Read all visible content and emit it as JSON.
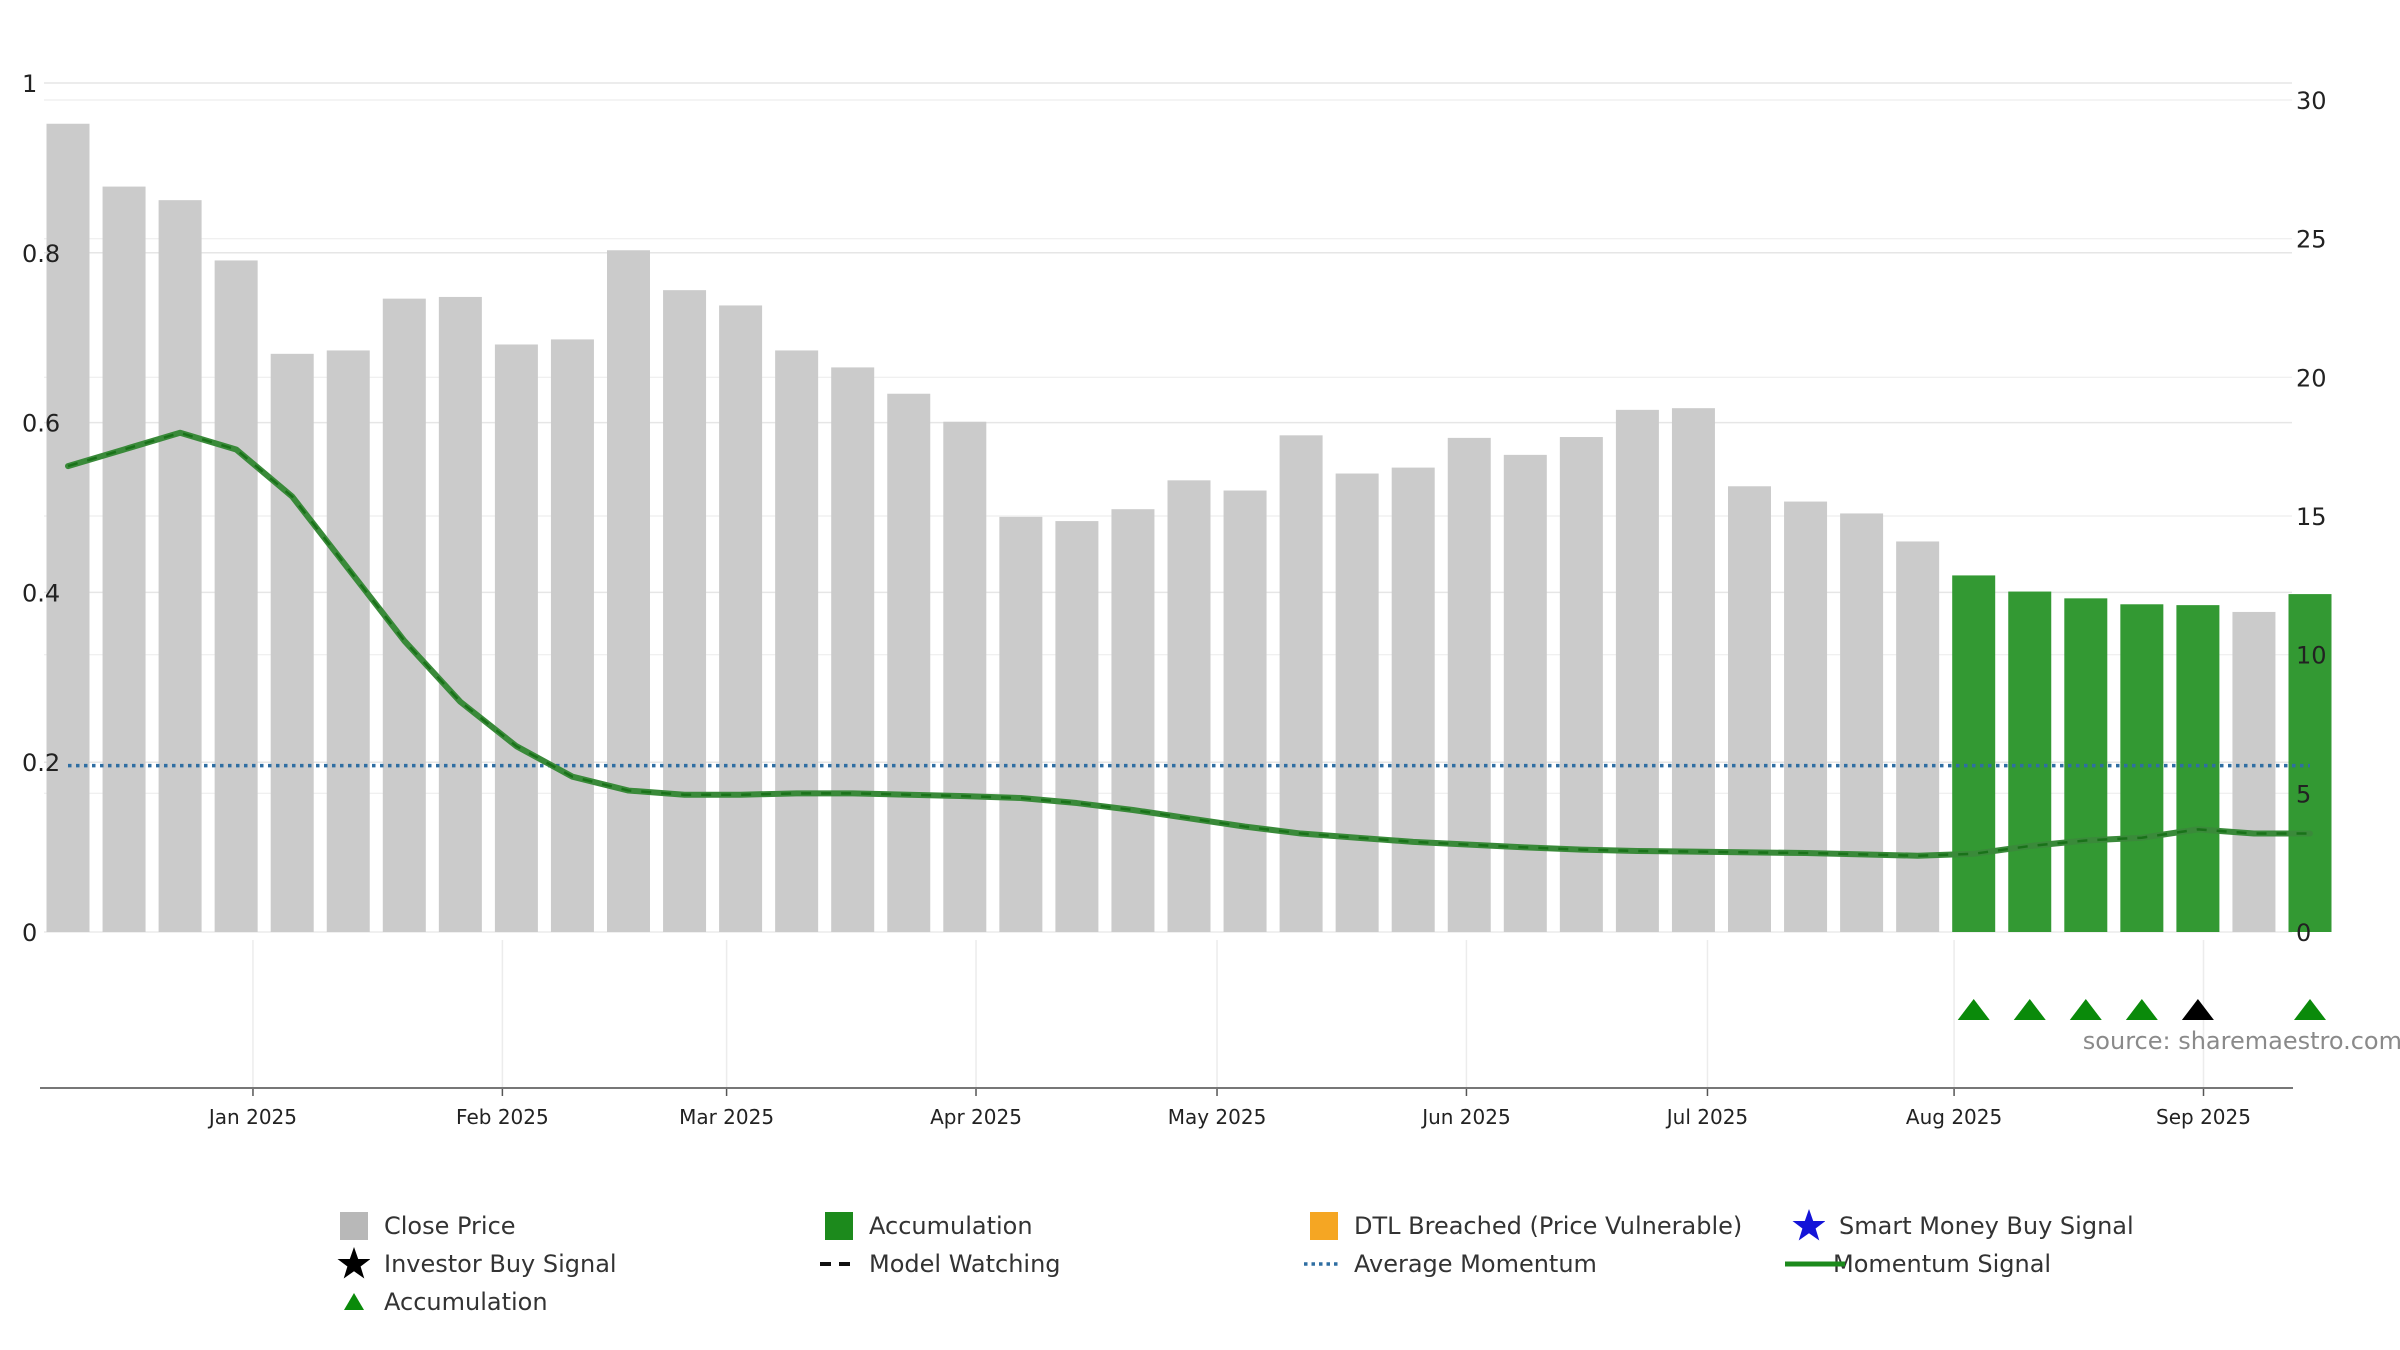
{
  "chart_data": {
    "type": "bar",
    "source_label": "source: sharemaestro.com",
    "left_axis": {
      "ylim": [
        0,
        1
      ],
      "ticks": [
        "0",
        "0.2",
        "0.4",
        "0.6",
        "0.8",
        "1"
      ],
      "tick_values": [
        0,
        0.2,
        0.4,
        0.6,
        0.8,
        1
      ]
    },
    "right_axis": {
      "ylim": [
        0,
        30
      ],
      "ticks": [
        "0",
        "5",
        "10",
        "15",
        "20",
        "25",
        "30"
      ],
      "tick_values": [
        0,
        5,
        10,
        15,
        20,
        25,
        30
      ]
    },
    "x_ticks": [
      {
        "label": "Jan 2025",
        "week": 3.3
      },
      {
        "label": "Feb 2025",
        "week": 7.75
      },
      {
        "label": "Mar 2025",
        "week": 11.75
      },
      {
        "label": "Apr 2025",
        "week": 16.2
      },
      {
        "label": "May 2025",
        "week": 20.5
      },
      {
        "label": "Jun 2025",
        "week": 24.95
      },
      {
        "label": "Jul 2025",
        "week": 29.25
      },
      {
        "label": "Aug 2025",
        "week": 33.65
      },
      {
        "label": "Sep 2025",
        "week": 38.1
      }
    ],
    "bars": [
      {
        "value": 0.952,
        "accumulation": false
      },
      {
        "value": 0.878,
        "accumulation": false
      },
      {
        "value": 0.862,
        "accumulation": false
      },
      {
        "value": 0.791,
        "accumulation": false
      },
      {
        "value": 0.681,
        "accumulation": false
      },
      {
        "value": 0.685,
        "accumulation": false
      },
      {
        "value": 0.746,
        "accumulation": false
      },
      {
        "value": 0.748,
        "accumulation": false
      },
      {
        "value": 0.692,
        "accumulation": false
      },
      {
        "value": 0.698,
        "accumulation": false
      },
      {
        "value": 0.803,
        "accumulation": false
      },
      {
        "value": 0.756,
        "accumulation": false
      },
      {
        "value": 0.738,
        "accumulation": false
      },
      {
        "value": 0.685,
        "accumulation": false
      },
      {
        "value": 0.665,
        "accumulation": false
      },
      {
        "value": 0.634,
        "accumulation": false
      },
      {
        "value": 0.601,
        "accumulation": false
      },
      {
        "value": 0.489,
        "accumulation": false
      },
      {
        "value": 0.484,
        "accumulation": false
      },
      {
        "value": 0.498,
        "accumulation": false
      },
      {
        "value": 0.532,
        "accumulation": false
      },
      {
        "value": 0.52,
        "accumulation": false
      },
      {
        "value": 0.585,
        "accumulation": false
      },
      {
        "value": 0.54,
        "accumulation": false
      },
      {
        "value": 0.547,
        "accumulation": false
      },
      {
        "value": 0.582,
        "accumulation": false
      },
      {
        "value": 0.562,
        "accumulation": false
      },
      {
        "value": 0.583,
        "accumulation": false
      },
      {
        "value": 0.615,
        "accumulation": false
      },
      {
        "value": 0.617,
        "accumulation": false
      },
      {
        "value": 0.525,
        "accumulation": false
      },
      {
        "value": 0.507,
        "accumulation": false
      },
      {
        "value": 0.493,
        "accumulation": false
      },
      {
        "value": 0.46,
        "accumulation": false
      },
      {
        "value": 0.42,
        "accumulation": true
      },
      {
        "value": 0.401,
        "accumulation": true
      },
      {
        "value": 0.393,
        "accumulation": true
      },
      {
        "value": 0.386,
        "accumulation": true
      },
      {
        "value": 0.385,
        "accumulation": true
      },
      {
        "value": 0.377,
        "accumulation": false
      },
      {
        "value": 0.398,
        "accumulation": true
      }
    ],
    "momentum_signal": [
      16.8,
      17.4,
      18.0,
      17.4,
      15.7,
      13.1,
      10.5,
      8.3,
      6.7,
      5.6,
      5.1,
      4.95,
      4.95,
      5.0,
      5.0,
      4.95,
      4.9,
      4.83,
      4.65,
      4.4,
      4.1,
      3.8,
      3.55,
      3.4,
      3.25,
      3.15,
      3.05,
      2.97,
      2.92,
      2.9,
      2.87,
      2.85,
      2.8,
      2.75,
      2.82,
      3.1,
      3.3,
      3.4,
      3.7,
      3.55,
      3.55
    ],
    "average_momentum": 6.0,
    "markers": [
      {
        "week": 34,
        "type": "accumulation"
      },
      {
        "week": 35,
        "type": "accumulation"
      },
      {
        "week": 36,
        "type": "accumulation"
      },
      {
        "week": 37,
        "type": "accumulation"
      },
      {
        "week": 38,
        "type": "investor"
      },
      {
        "week": 40,
        "type": "accumulation"
      }
    ],
    "colors": {
      "bar": "#cbcbcb",
      "bar_accumulation": "#339933",
      "momentum": "#3a8a3a",
      "average": "#2f6ea2",
      "marker_green": "#0a8a0a",
      "marker_black": "#000000"
    },
    "legend": [
      {
        "label": "Close Price",
        "symbol": "gray-square"
      },
      {
        "label": "Accumulation",
        "symbol": "green-square"
      },
      {
        "label": "DTL Breached (Price Vulnerable)",
        "symbol": "orange-square"
      },
      {
        "label": "Smart Money Buy Signal",
        "symbol": "blue-star"
      },
      {
        "label": "Investor Buy Signal",
        "symbol": "black-star"
      },
      {
        "label": "Model Watching",
        "symbol": "dashed-line"
      },
      {
        "label": "Average Momentum",
        "symbol": "dotted-line"
      },
      {
        "label": "Momentum Signal",
        "symbol": "green-line"
      },
      {
        "label": "Accumulation",
        "symbol": "green-triangle"
      }
    ]
  }
}
